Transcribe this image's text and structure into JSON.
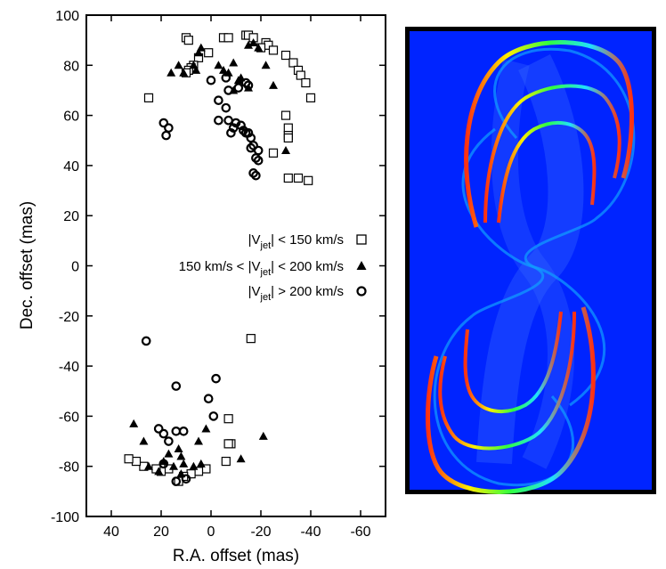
{
  "chart_data": {
    "type": "scatter",
    "xlabel": "R.A. offset (mas)",
    "ylabel": "Dec. offset (mas)",
    "xlim": [
      50,
      -70
    ],
    "ylim": [
      -100,
      100
    ],
    "xticks": [
      {
        "value": 40,
        "label": "40"
      },
      {
        "value": 20,
        "label": "20"
      },
      {
        "value": 0,
        "label": "0"
      },
      {
        "value": -20,
        "label": "-20"
      },
      {
        "value": -40,
        "label": "-40"
      },
      {
        "value": -60,
        "label": "-60"
      }
    ],
    "yticks": [
      {
        "value": 100,
        "label": "100"
      },
      {
        "value": 80,
        "label": "80"
      },
      {
        "value": 60,
        "label": "60"
      },
      {
        "value": 40,
        "label": "40"
      },
      {
        "value": 20,
        "label": "20"
      },
      {
        "value": 0,
        "label": "0"
      },
      {
        "value": -20,
        "label": "-20"
      },
      {
        "value": -40,
        "label": "-40"
      },
      {
        "value": -60,
        "label": "-60"
      },
      {
        "value": -80,
        "label": "-80"
      },
      {
        "value": -100,
        "label": "-100"
      }
    ],
    "legend": [
      {
        "series": "slow",
        "marker": "square",
        "label_pre": "|V",
        "label_sub": "jet",
        "label_post": "| < 150 km/s"
      },
      {
        "series": "mid",
        "marker": "triangle",
        "label_pre": "150 km/s < |V",
        "label_sub": "jet",
        "label_post": "| < 200 km/s"
      },
      {
        "series": "fast",
        "marker": "circle",
        "label_pre": "|V",
        "label_sub": "jet",
        "label_post": "| > 200 km/s"
      }
    ],
    "series": [
      {
        "name": "slow",
        "marker": "square",
        "points": [
          [
            10,
            91
          ],
          [
            9,
            90
          ],
          [
            -5,
            91
          ],
          [
            -7,
            91
          ],
          [
            -14,
            92
          ],
          [
            -15,
            92
          ],
          [
            -17,
            91
          ],
          [
            -22,
            89
          ],
          [
            -23,
            88
          ],
          [
            -20,
            87
          ],
          [
            -25,
            86
          ],
          [
            -30,
            84
          ],
          [
            -33,
            81
          ],
          [
            -35,
            78
          ],
          [
            -36,
            76
          ],
          [
            -38,
            73
          ],
          [
            -40,
            67
          ],
          [
            -30,
            60
          ],
          [
            -31,
            55
          ],
          [
            -31,
            52
          ],
          [
            -31,
            51
          ],
          [
            -35,
            35
          ],
          [
            -25,
            45
          ],
          [
            -31,
            35
          ],
          [
            -39,
            34
          ],
          [
            1,
            85
          ],
          [
            5,
            83
          ],
          [
            7,
            80
          ],
          [
            8,
            79
          ],
          [
            9,
            78
          ],
          [
            10,
            77
          ],
          [
            25,
            67
          ],
          [
            -16,
            -29
          ],
          [
            -7,
            -61
          ],
          [
            -8,
            -71
          ],
          [
            -7,
            -71
          ],
          [
            -6,
            -78
          ],
          [
            2,
            -81
          ],
          [
            5,
            -82
          ],
          [
            8,
            -83
          ],
          [
            11,
            -84
          ],
          [
            13,
            -86
          ],
          [
            17,
            -81
          ],
          [
            20,
            -82
          ],
          [
            22,
            -81
          ],
          [
            27,
            -80
          ],
          [
            30,
            -78
          ],
          [
            33,
            -77
          ]
        ]
      },
      {
        "name": "mid",
        "marker": "triangle",
        "points": [
          [
            4,
            87
          ],
          [
            5,
            85
          ],
          [
            6,
            78
          ],
          [
            11,
            77
          ],
          [
            13,
            80
          ],
          [
            16,
            77
          ],
          [
            7,
            80
          ],
          [
            -3,
            80
          ],
          [
            -7,
            77
          ],
          [
            -9,
            81
          ],
          [
            -11,
            74
          ],
          [
            -12,
            75
          ],
          [
            -15,
            71
          ],
          [
            -15,
            88
          ],
          [
            -17,
            89
          ],
          [
            -19,
            87
          ],
          [
            -22,
            80
          ],
          [
            -5,
            78
          ],
          [
            -9,
            70
          ],
          [
            -25,
            72
          ],
          [
            -30,
            46
          ],
          [
            31,
            -63
          ],
          [
            27,
            -70
          ],
          [
            25,
            -80
          ],
          [
            19,
            -78
          ],
          [
            13,
            -73
          ],
          [
            12,
            -76
          ],
          [
            11,
            -79
          ],
          [
            12,
            -83
          ],
          [
            15,
            -80
          ],
          [
            17,
            -75
          ],
          [
            21,
            -82
          ],
          [
            7,
            -80
          ],
          [
            5,
            -70
          ],
          [
            4,
            -79
          ],
          [
            2,
            -65
          ],
          [
            -12,
            -77
          ],
          [
            -21,
            -68
          ]
        ]
      },
      {
        "name": "fast",
        "marker": "circle",
        "points": [
          [
            -14,
            73
          ],
          [
            -15,
            72
          ],
          [
            -11,
            71
          ],
          [
            -7,
            70
          ],
          [
            -3,
            66
          ],
          [
            -6,
            63
          ],
          [
            -7,
            58
          ],
          [
            -8,
            53
          ],
          [
            -9,
            55
          ],
          [
            -10,
            57
          ],
          [
            -12,
            56
          ],
          [
            -13,
            54
          ],
          [
            -14,
            53
          ],
          [
            -15,
            53
          ],
          [
            -16,
            51
          ],
          [
            -17,
            48
          ],
          [
            -16,
            47
          ],
          [
            -19,
            46
          ],
          [
            -18,
            43
          ],
          [
            -19,
            42
          ],
          [
            -17,
            37
          ],
          [
            -18,
            36
          ],
          [
            -3,
            58
          ],
          [
            19,
            57
          ],
          [
            17,
            55
          ],
          [
            18,
            52
          ],
          [
            0,
            74
          ],
          [
            -6,
            75
          ],
          [
            -2,
            -45
          ],
          [
            1,
            -53
          ],
          [
            -1,
            -60
          ],
          [
            14,
            -48
          ],
          [
            26,
            -30
          ],
          [
            21,
            -65
          ],
          [
            19,
            -67
          ],
          [
            17,
            -70
          ],
          [
            14,
            -66
          ],
          [
            11,
            -66
          ],
          [
            19,
            -79
          ],
          [
            10,
            -85
          ],
          [
            14,
            -86
          ]
        ]
      }
    ]
  }
}
